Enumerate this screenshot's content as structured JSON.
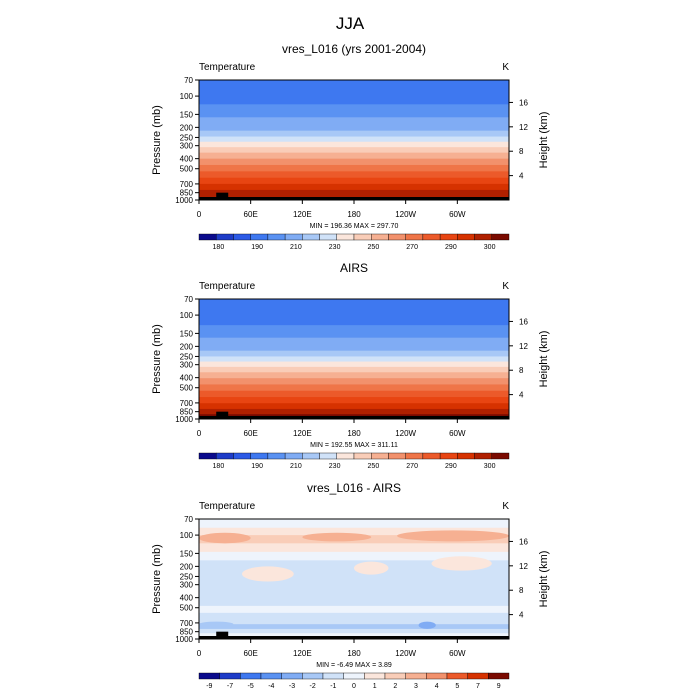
{
  "figure_title": "JJA",
  "chart_data": [
    {
      "type": "heatmap",
      "title": "vres_L016 (yrs 2001-2004)",
      "left_label": "Temperature",
      "units": "K",
      "ylabel": "Pressure (mb)",
      "y2label": "Height (km)",
      "y_ticks": [
        "70",
        "100",
        "150",
        "200",
        "250",
        "300",
        "400",
        "500",
        "700",
        "850",
        "1000"
      ],
      "y_tick_values": [
        70,
        100,
        150,
        200,
        250,
        300,
        400,
        500,
        700,
        850,
        1000
      ],
      "height_ticks": [
        "4",
        "8",
        "12",
        "16"
      ],
      "height_tick_values": [
        4,
        8,
        12,
        16
      ],
      "x_ticks": [
        "0",
        "60E",
        "120E",
        "180",
        "120W",
        "60W"
      ],
      "x_tick_values": [
        0,
        60,
        120,
        180,
        240,
        300
      ],
      "xlim": [
        0,
        360
      ],
      "ylim": [
        1000,
        70
      ],
      "minmax": "MIN = 196.36  MAX = 297.70",
      "colorbar_labels": [
        "180",
        "190",
        "210",
        "230",
        "250",
        "270",
        "290",
        "300"
      ],
      "levels_by_pressure": [
        {
          "p": 70,
          "level": 3
        },
        {
          "p": 90,
          "level": 3
        },
        {
          "p": 105,
          "level": 3
        },
        {
          "p": 120,
          "level": 4
        },
        {
          "p": 140,
          "level": 4
        },
        {
          "p": 160,
          "level": 5
        },
        {
          "p": 185,
          "level": 5
        },
        {
          "p": 215,
          "level": 6
        },
        {
          "p": 245,
          "level": 7
        },
        {
          "p": 275,
          "level": 8
        },
        {
          "p": 310,
          "level": 9
        },
        {
          "p": 350,
          "level": 10
        },
        {
          "p": 400,
          "level": 11
        },
        {
          "p": 460,
          "level": 12
        },
        {
          "p": 530,
          "level": 13
        },
        {
          "p": 610,
          "level": 14
        },
        {
          "p": 700,
          "level": 15
        },
        {
          "p": 800,
          "level": 16
        },
        {
          "p": 900,
          "level": 16
        },
        {
          "p": 960,
          "level": 17
        }
      ]
    },
    {
      "type": "heatmap",
      "title": "AIRS",
      "left_label": "Temperature",
      "units": "K",
      "ylabel": "Pressure (mb)",
      "y2label": "Height (km)",
      "y_ticks": [
        "70",
        "100",
        "150",
        "200",
        "250",
        "300",
        "400",
        "500",
        "700",
        "850",
        "1000"
      ],
      "y_tick_values": [
        70,
        100,
        150,
        200,
        250,
        300,
        400,
        500,
        700,
        850,
        1000
      ],
      "height_ticks": [
        "4",
        "8",
        "12",
        "16"
      ],
      "height_tick_values": [
        4,
        8,
        12,
        16
      ],
      "x_ticks": [
        "0",
        "60E",
        "120E",
        "180",
        "120W",
        "60W"
      ],
      "x_tick_values": [
        0,
        60,
        120,
        180,
        240,
        300
      ],
      "xlim": [
        0,
        360
      ],
      "ylim": [
        1000,
        70
      ],
      "minmax": "MIN = 192.55  MAX = 311.11",
      "colorbar_labels": [
        "180",
        "190",
        "210",
        "230",
        "250",
        "270",
        "290",
        "300"
      ],
      "levels_by_pressure": [
        {
          "p": 70,
          "level": 3
        },
        {
          "p": 90,
          "level": 3
        },
        {
          "p": 105,
          "level": 3
        },
        {
          "p": 125,
          "level": 4
        },
        {
          "p": 145,
          "level": 4
        },
        {
          "p": 165,
          "level": 5
        },
        {
          "p": 190,
          "level": 5
        },
        {
          "p": 220,
          "level": 6
        },
        {
          "p": 250,
          "level": 7
        },
        {
          "p": 280,
          "level": 8
        },
        {
          "p": 315,
          "level": 9
        },
        {
          "p": 355,
          "level": 10
        },
        {
          "p": 405,
          "level": 11
        },
        {
          "p": 465,
          "level": 12
        },
        {
          "p": 535,
          "level": 13
        },
        {
          "p": 615,
          "level": 14
        },
        {
          "p": 705,
          "level": 15
        },
        {
          "p": 800,
          "level": 16
        },
        {
          "p": 900,
          "level": 17
        },
        {
          "p": 960,
          "level": 17
        }
      ]
    },
    {
      "type": "heatmap",
      "title": "vres_L016 - AIRS",
      "left_label": "Temperature",
      "units": "K",
      "ylabel": "Pressure (mb)",
      "y2label": "Height (km)",
      "y_ticks": [
        "70",
        "100",
        "150",
        "200",
        "250",
        "300",
        "400",
        "500",
        "700",
        "850",
        "1000"
      ],
      "y_tick_values": [
        70,
        100,
        150,
        200,
        250,
        300,
        400,
        500,
        700,
        850,
        1000
      ],
      "height_ticks": [
        "4",
        "8",
        "12",
        "16"
      ],
      "height_tick_values": [
        4,
        8,
        12,
        16
      ],
      "x_ticks": [
        "0",
        "60E",
        "120E",
        "180",
        "120W",
        "60W"
      ],
      "x_tick_values": [
        0,
        60,
        120,
        180,
        240,
        300
      ],
      "xlim": [
        0,
        360
      ],
      "ylim": [
        1000,
        70
      ],
      "minmax": "MIN =  -6.49  MAX =   3.89",
      "colorbar_labels": [
        "-9",
        "-7",
        "-5",
        "-4",
        "-3",
        "-2",
        "-1",
        "0",
        "1",
        "2",
        "3",
        "4",
        "5",
        "7",
        "9"
      ],
      "levels_by_pressure": [
        {
          "p": 70,
          "level": 7
        },
        {
          "p": 85,
          "level": 8
        },
        {
          "p": 100,
          "level": 9
        },
        {
          "p": 120,
          "level": 8
        },
        {
          "p": 145,
          "level": 7
        },
        {
          "p": 175,
          "level": 6
        },
        {
          "p": 210,
          "level": 6
        },
        {
          "p": 260,
          "level": 6
        },
        {
          "p": 320,
          "level": 6
        },
        {
          "p": 400,
          "level": 6
        },
        {
          "p": 480,
          "level": 7
        },
        {
          "p": 560,
          "level": 6
        },
        {
          "p": 640,
          "level": 6
        },
        {
          "p": 720,
          "level": 5
        },
        {
          "p": 800,
          "level": 6
        },
        {
          "p": 880,
          "level": 7
        },
        {
          "p": 950,
          "level": 6
        }
      ],
      "features": [
        {
          "lon": 0,
          "lon_end": 60,
          "p": 95,
          "p_end": 120,
          "level": 10
        },
        {
          "lon": 120,
          "lon_end": 200,
          "p": 95,
          "p_end": 115,
          "level": 10
        },
        {
          "lon": 230,
          "lon_end": 360,
          "p": 90,
          "p_end": 115,
          "level": 10
        },
        {
          "lon": 50,
          "lon_end": 110,
          "p": 200,
          "p_end": 280,
          "level": 8
        },
        {
          "lon": 180,
          "lon_end": 220,
          "p": 180,
          "p_end": 240,
          "level": 8
        },
        {
          "lon": 270,
          "lon_end": 340,
          "p": 160,
          "p_end": 220,
          "level": 8
        },
        {
          "lon": 0,
          "lon_end": 40,
          "p": 680,
          "p_end": 760,
          "level": 5
        },
        {
          "lon": 255,
          "lon_end": 275,
          "p": 680,
          "p_end": 800,
          "level": 4
        }
      ]
    }
  ],
  "palette_temp": [
    "#0a0a8c",
    "#1e3cc8",
    "#2c5ae6",
    "#3e78f0",
    "#5a92f2",
    "#80acf4",
    "#a8c8f6",
    "#d0e2f8",
    "#fbe6dc",
    "#f9cdb8",
    "#f6b092",
    "#f2916c",
    "#ef7548",
    "#ec5a2a",
    "#e84512",
    "#d63200",
    "#b02000",
    "#7a0a00"
  ],
  "palette_diff": [
    "#0a0a8c",
    "#1e3cc8",
    "#3e78f0",
    "#5a92f2",
    "#80acf4",
    "#a8c8f6",
    "#d0e2f8",
    "#eef4fc",
    "#fbe6dc",
    "#f9cdb8",
    "#f6b092",
    "#f2916c",
    "#ec5a2a",
    "#d63200",
    "#7a0a00"
  ],
  "ground_color": "#000000"
}
